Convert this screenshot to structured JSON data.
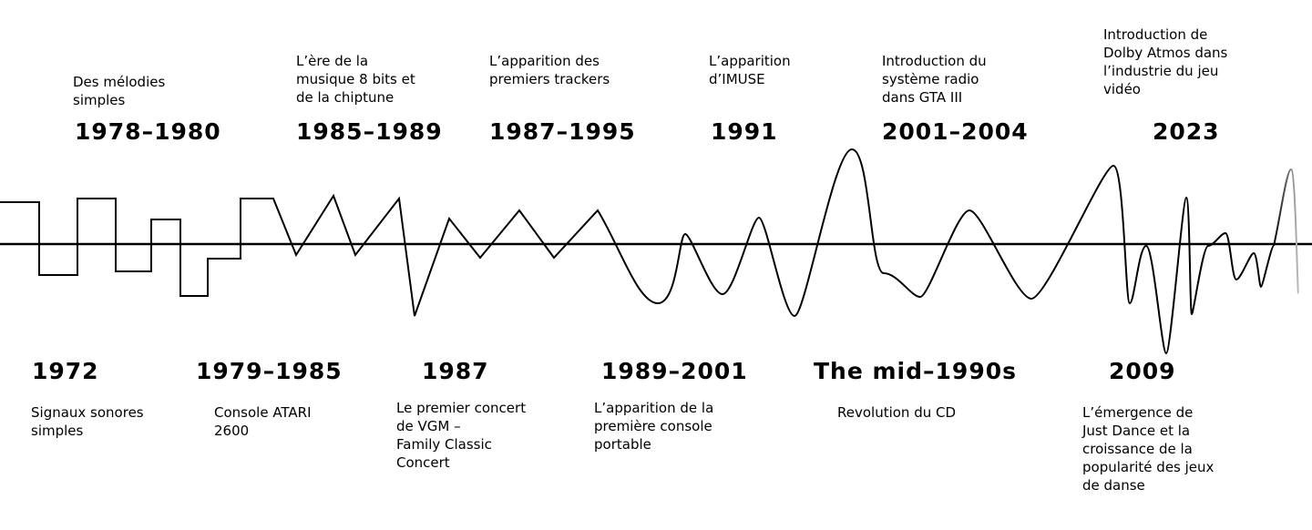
{
  "timeline": {
    "top": [
      {
        "year": "1978–1980",
        "description": [
          "Des mélodies",
          "simples"
        ]
      },
      {
        "year": "1985–1989",
        "description": [
          "L’ère de la",
          "musique 8 bits et",
          "de la chiptune"
        ]
      },
      {
        "year": "1987–1995",
        "description": [
          "L’apparition des",
          "premiers trackers"
        ]
      },
      {
        "year": "1991",
        "description": [
          "L’apparition",
          "d’IMUSE"
        ]
      },
      {
        "year": "2001–2004",
        "description": [
          "Introduction du",
          "système radio",
          "dans GTA III"
        ]
      },
      {
        "year": "2023",
        "description": [
          "Introduction de",
          "Dolby Atmos dans",
          "l’industrie du jeu",
          "vidéo"
        ]
      }
    ],
    "bottom": [
      {
        "year": "1972",
        "description": [
          "Signaux sonores",
          "simples"
        ]
      },
      {
        "year": "1979–1985",
        "description": [
          "Console ATARI",
          "2600"
        ]
      },
      {
        "year": "1987",
        "description": [
          "Le premier concert",
          "de VGM –",
          "Family Classic",
          "Concert"
        ]
      },
      {
        "year": "1989–2001",
        "description": [
          "L’apparition de la",
          "première console",
          "portable"
        ]
      },
      {
        "year": "The mid–1990s",
        "description": [
          "Revolution du CD"
        ]
      },
      {
        "year": "2009",
        "description": [
          "L’émergence de",
          "Just Dance et la",
          "croissance de la",
          "popularité des jeux",
          "de danse"
        ]
      }
    ]
  }
}
